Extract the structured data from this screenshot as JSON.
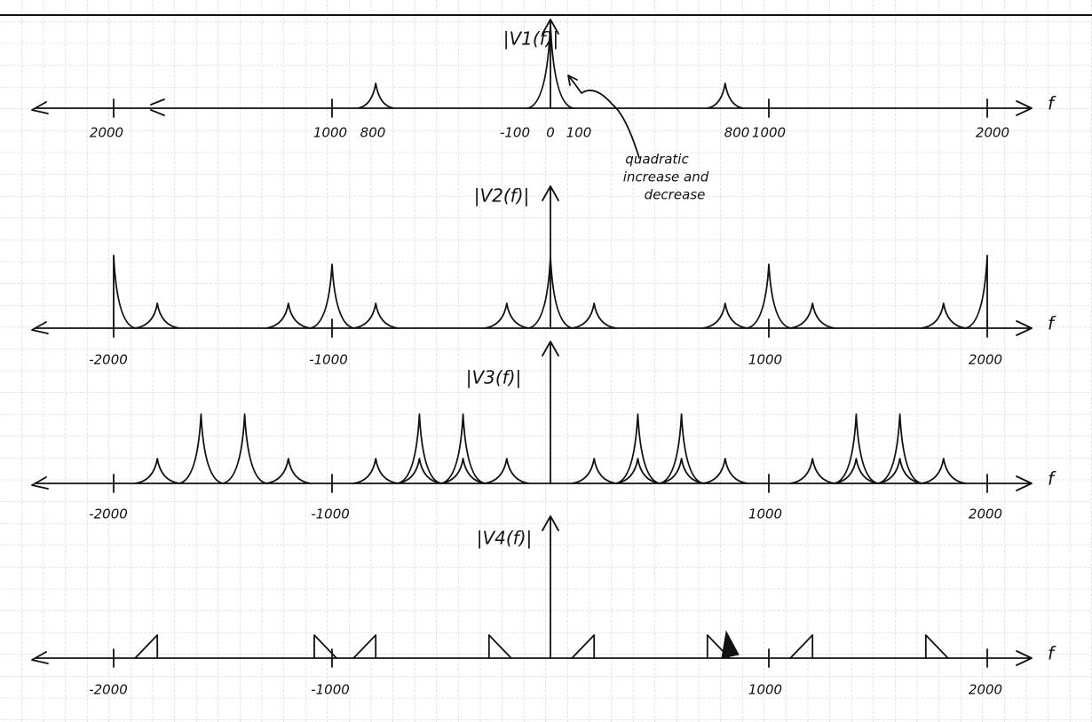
{
  "panels": [
    {
      "label": "|V1(f)|",
      "ticks": [
        "2000",
        "1000",
        "800",
        "-100",
        "0",
        "100",
        "800",
        "1000",
        "2000"
      ],
      "axis_label": "f"
    },
    {
      "label": "|V2(f)|",
      "ticks": [
        "-2000",
        "-1000",
        "1000",
        "2000"
      ],
      "axis_label": "f"
    },
    {
      "label": "|V3(f)|",
      "ticks": [
        "-2000",
        "-1000",
        "1000",
        "2000"
      ],
      "axis_label": "f"
    },
    {
      "label": "|V4(f)|",
      "ticks": [
        "-2000",
        "-1000",
        "1000",
        "2000"
      ],
      "axis_label": "f"
    }
  ],
  "annotation": [
    "quadratic",
    "increase and",
    "decrease"
  ]
}
